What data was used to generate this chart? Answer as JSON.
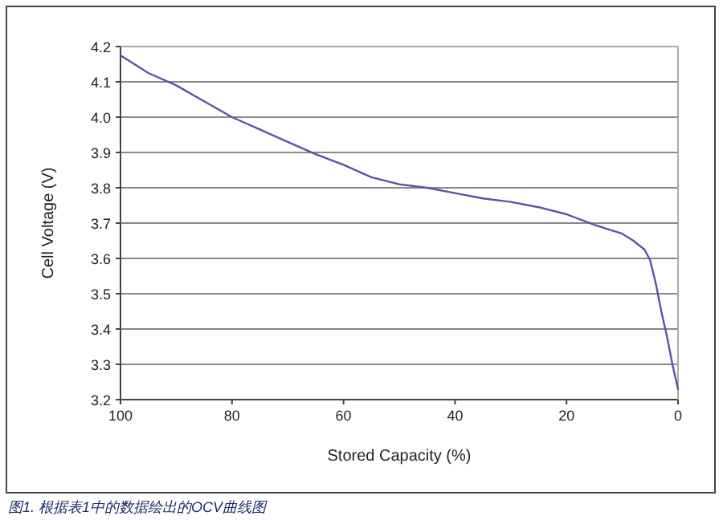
{
  "chart_data": {
    "type": "line",
    "xlabel": "Stored Capacity (%)",
    "ylabel": "Cell Voltage (V)",
    "annotations": [
      "图1. 根据表1中的数据绘出的OCV曲线图"
    ],
    "x": [
      100,
      95,
      90,
      85,
      80,
      75,
      70,
      65,
      60,
      55,
      50,
      45,
      40,
      35,
      30,
      25,
      20,
      15,
      12,
      10,
      8,
      6,
      5,
      4,
      3,
      2,
      1,
      0
    ],
    "series": [
      {
        "color": "#5555aa",
        "values": [
          4.175,
          4.125,
          4.09,
          4.045,
          4.0,
          3.965,
          3.93,
          3.895,
          3.865,
          3.83,
          3.81,
          3.8,
          3.785,
          3.77,
          3.76,
          3.745,
          3.725,
          3.695,
          3.68,
          3.67,
          3.65,
          3.625,
          3.595,
          3.53,
          3.45,
          3.38,
          3.3,
          3.23
        ]
      }
    ],
    "xlim": [
      100,
      0
    ],
    "xticks": [
      100,
      80,
      60,
      40,
      20,
      0
    ],
    "ylim": [
      3.2,
      4.2
    ],
    "yticks": [
      3.2,
      3.3,
      3.4,
      3.5,
      3.6,
      3.7,
      3.8,
      3.9,
      {
        "value": 4,
        "label": "4.0"
      },
      4.1,
      4.2
    ],
    "grid": "y",
    "marker": "none",
    "line_style": "solid"
  }
}
